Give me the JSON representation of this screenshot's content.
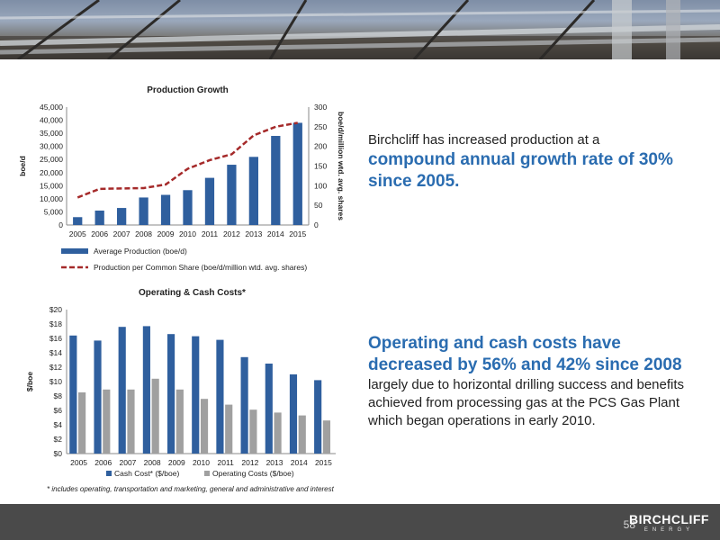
{
  "page": {
    "page_number": "58",
    "logo_main": "BIRCHCLIFF",
    "logo_sub": "ENERGY"
  },
  "text1": {
    "lead": "Birchcliff has increased production at a ",
    "highlight": "compound annual growth rate of 30% since 2005."
  },
  "text2": {
    "highlight": "Operating and cash costs have decreased by 56% and 42% since 2008",
    "rest": " largely due to horizontal drilling success and benefits achieved from processing gas at the PCS Gas Plant which began operations in early 2010."
  },
  "footnote": "* includes operating, transportation and marketing, general and administrative and interest",
  "colors": {
    "bar_blue": "#2f5f9e",
    "line_red": "#a52a2a",
    "bar_gray": "#a0a0a0",
    "accent_text": "#2a6cb0"
  },
  "chart_data": [
    {
      "type": "bar",
      "title": "Production Growth",
      "categories": [
        "2005",
        "2006",
        "2007",
        "2008",
        "2009",
        "2010",
        "2011",
        "2012",
        "2013",
        "2014",
        "2015"
      ],
      "ylabel": "boe/d",
      "y2label": "boe/d/million wtd. avg. shares",
      "ylim": [
        0,
        45000
      ],
      "y2lim": [
        0,
        300
      ],
      "yticks": [
        "0",
        "5,000",
        "10,000",
        "15,000",
        "20,000",
        "25,000",
        "30,000",
        "35,000",
        "40,000",
        "45,000"
      ],
      "y2ticks": [
        "0",
        "50",
        "100",
        "150",
        "200",
        "250",
        "300"
      ],
      "series": [
        {
          "name": "Average Production (boe/d)",
          "type": "bar",
          "axis": "left",
          "values": [
            3000,
            5500,
            6500,
            10500,
            11500,
            13300,
            18000,
            23000,
            26000,
            34000,
            39000
          ]
        },
        {
          "name": "Production per Common Share (boe/d/million wtd. avg. shares)",
          "type": "line",
          "axis": "right",
          "style": "dashed",
          "values": [
            70,
            92,
            93,
            94,
            103,
            143,
            165,
            180,
            228,
            250,
            260
          ]
        }
      ],
      "legend": "bottom",
      "grid": false
    },
    {
      "type": "bar",
      "title": "Operating & Cash Costs*",
      "categories": [
        "2005",
        "2006",
        "2007",
        "2008",
        "2009",
        "2010",
        "2011",
        "2012",
        "2013",
        "2014",
        "2015"
      ],
      "ylabel": "$/boe",
      "ylim": [
        0,
        20
      ],
      "yticks": [
        "$0",
        "$2",
        "$4",
        "$6",
        "$8",
        "$10",
        "$12",
        "$14",
        "$16",
        "$18",
        "$20"
      ],
      "series": [
        {
          "name": "Cash Cost* ($/boe)",
          "values": [
            16.4,
            15.7,
            17.6,
            17.7,
            16.6,
            16.3,
            15.8,
            13.4,
            12.5,
            11.0,
            10.2
          ]
        },
        {
          "name": "Operating Costs ($/boe)",
          "values": [
            8.5,
            8.9,
            8.9,
            10.4,
            8.9,
            7.6,
            6.8,
            6.1,
            5.7,
            5.3,
            4.6
          ]
        }
      ],
      "legend": "bottom",
      "grid": false
    }
  ]
}
